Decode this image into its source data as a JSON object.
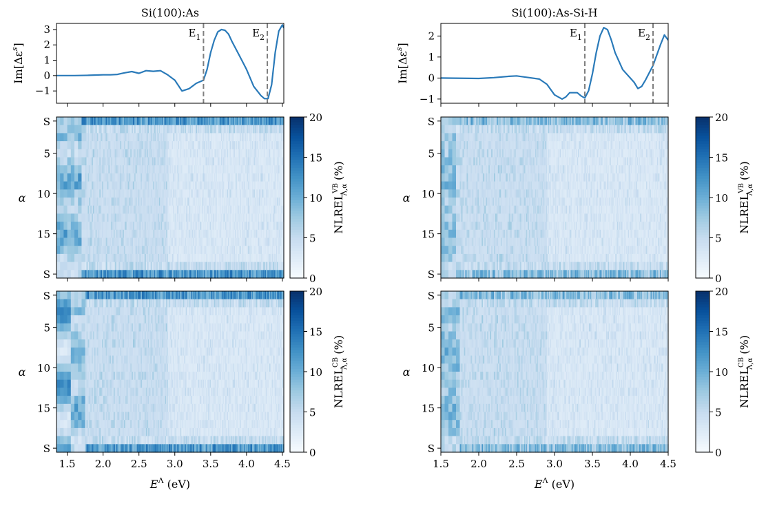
{
  "chart_data": [
    {
      "type": "line",
      "panel": "left-top",
      "title": "Si(100):As",
      "ylabel": "Im[Δε^s]",
      "xlim": [
        1.35,
        4.52
      ],
      "ylim": [
        -1.8,
        3.4
      ],
      "yticks": [
        "−1",
        "0",
        "1",
        "2",
        "3"
      ],
      "ytick_values": [
        -1,
        0,
        1,
        2,
        3
      ],
      "x": [
        1.35,
        1.6,
        1.8,
        2.0,
        2.1,
        2.2,
        2.3,
        2.4,
        2.5,
        2.6,
        2.7,
        2.8,
        2.9,
        3.0,
        3.1,
        3.2,
        3.3,
        3.4,
        3.45,
        3.5,
        3.55,
        3.6,
        3.65,
        3.7,
        3.75,
        3.8,
        3.9,
        4.0,
        4.1,
        4.2,
        4.25,
        4.3,
        4.35,
        4.4,
        4.45,
        4.5,
        4.52
      ],
      "y": [
        0.0,
        0.0,
        0.02,
        0.05,
        0.05,
        0.08,
        0.18,
        0.26,
        0.15,
        0.32,
        0.28,
        0.32,
        0.05,
        -0.3,
        -1.0,
        -0.85,
        -0.5,
        -0.3,
        0.4,
        1.5,
        2.3,
        2.85,
        3.0,
        2.95,
        2.7,
        2.2,
        1.3,
        0.4,
        -0.7,
        -1.3,
        -1.5,
        -1.5,
        -0.6,
        1.5,
        2.9,
        3.3,
        3.1
      ],
      "vlines": [
        {
          "x": 3.4,
          "label": "E₁"
        },
        {
          "x": 4.29,
          "label": "E₂"
        }
      ],
      "color": "#2a7ab9"
    },
    {
      "type": "line",
      "panel": "right-top",
      "title": "Si(100):As-Si-H",
      "ylabel": "Im[Δε^s]",
      "xlim": [
        1.5,
        4.5
      ],
      "ylim": [
        -1.2,
        2.6
      ],
      "yticks": [
        "−1",
        "0",
        "1",
        "2"
      ],
      "ytick_values": [
        -1,
        0,
        1,
        2
      ],
      "x": [
        1.5,
        2.0,
        2.2,
        2.4,
        2.5,
        2.6,
        2.8,
        2.9,
        3.0,
        3.1,
        3.15,
        3.2,
        3.3,
        3.35,
        3.4,
        3.45,
        3.5,
        3.55,
        3.6,
        3.65,
        3.7,
        3.75,
        3.8,
        3.9,
        4.0,
        4.05,
        4.1,
        4.15,
        4.2,
        4.3,
        4.4,
        4.45,
        4.5
      ],
      "y": [
        0.0,
        -0.02,
        0.02,
        0.08,
        0.1,
        0.05,
        -0.05,
        -0.3,
        -0.8,
        -1.0,
        -0.9,
        -0.7,
        -0.7,
        -0.85,
        -0.95,
        -0.6,
        0.2,
        1.2,
        2.0,
        2.4,
        2.3,
        1.8,
        1.2,
        0.4,
        0.0,
        -0.2,
        -0.5,
        -0.4,
        -0.1,
        0.6,
        1.6,
        2.05,
        1.8
      ],
      "vlines": [
        {
          "x": 3.4,
          "label": "E₁"
        },
        {
          "x": 4.3,
          "label": "E₂"
        }
      ],
      "color": "#2a7ab9"
    },
    {
      "type": "heatmap",
      "panel": "left-middle",
      "ylabel": "α",
      "xlim": [
        1.35,
        4.52
      ],
      "yticks": [
        "S",
        "5",
        "10",
        "15",
        "S"
      ],
      "colorbar_label": "NLREL^VB_{Λ,α} (%)",
      "colorbar_ticks": [
        "0",
        "5",
        "10",
        "15",
        "20"
      ],
      "vmin": 0,
      "vmax": 20,
      "rows": 20
    },
    {
      "type": "heatmap",
      "panel": "right-middle",
      "ylabel": "α",
      "xlim": [
        1.5,
        4.5
      ],
      "yticks": [
        "S",
        "5",
        "10",
        "15",
        "S"
      ],
      "colorbar_label": "NLREL^VB_{Λ,α} (%)",
      "colorbar_ticks": [
        "0",
        "5",
        "10",
        "15",
        "20"
      ],
      "vmin": 0,
      "vmax": 20,
      "rows": 20
    },
    {
      "type": "heatmap",
      "panel": "left-bottom",
      "ylabel": "α",
      "xlabel": "E^Λ (eV)",
      "xlim": [
        1.35,
        4.52
      ],
      "xticks": [
        "1.5",
        "2.0",
        "2.5",
        "3.0",
        "3.5",
        "4.0",
        "4.5"
      ],
      "xtick_values": [
        1.5,
        2.0,
        2.5,
        3.0,
        3.5,
        4.0,
        4.5
      ],
      "yticks": [
        "S",
        "5",
        "10",
        "15",
        "S"
      ],
      "colorbar_label": "NLREL^CB_{Λ,α} (%)",
      "colorbar_ticks": [
        "0",
        "5",
        "10",
        "15",
        "20"
      ],
      "vmin": 0,
      "vmax": 20,
      "rows": 20
    },
    {
      "type": "heatmap",
      "panel": "right-bottom",
      "ylabel": "α",
      "xlabel": "E^Λ (eV)",
      "xlim": [
        1.5,
        4.5
      ],
      "xticks": [
        "1.5",
        "2.0",
        "2.5",
        "3.0",
        "3.5",
        "4.0",
        "4.5"
      ],
      "xtick_values": [
        1.5,
        2.0,
        2.5,
        3.0,
        3.5,
        4.0,
        4.5
      ],
      "yticks": [
        "S",
        "5",
        "10",
        "15",
        "S"
      ],
      "colorbar_label": "NLREL^CB_{Λ,α} (%)",
      "colorbar_ticks": [
        "0",
        "5",
        "10",
        "15",
        "20"
      ],
      "vmin": 0,
      "vmax": 20,
      "rows": 20
    }
  ],
  "labels": {
    "left_title": "Si(100):As",
    "right_title": "Si(100):As-Si-H",
    "im_label_main": "Im[Δε",
    "im_label_sup": "s",
    "im_label_close": "]",
    "alpha": "α",
    "xlabel_main": "E",
    "xlabel_sup": "Λ",
    "xlabel_unit": " (eV)",
    "cb_main": "NLREL",
    "cb_sup_vb": "VB",
    "cb_sup_cb": "CB",
    "cb_sub": "Λ,α",
    "cb_unit": " (%)",
    "e1": "E",
    "e1_sub": "1",
    "e2": "E",
    "e2_sub": "2"
  }
}
